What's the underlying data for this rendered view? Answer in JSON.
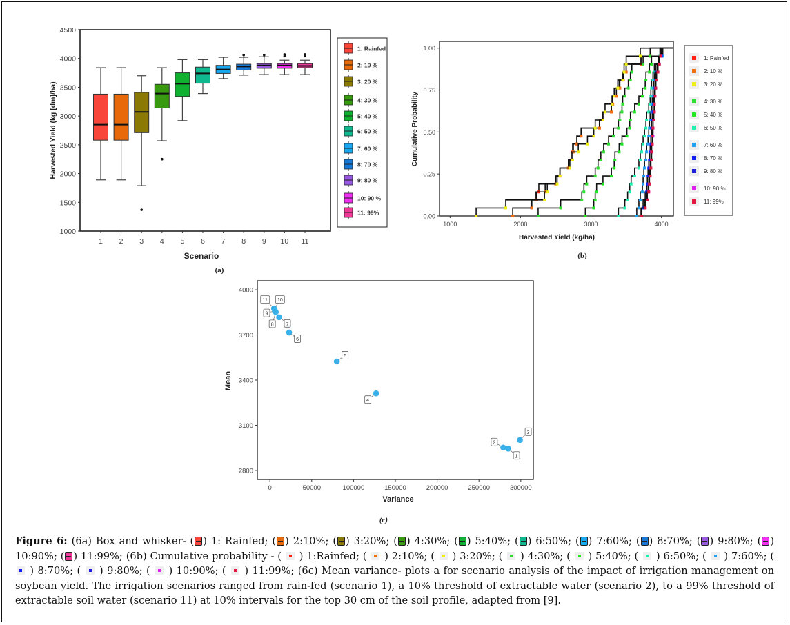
{
  "figure": {
    "caption_label": "Figure 6:",
    "caption_parts": {
      "a_intro": " (6a) Box and whisker- (",
      "b_intro": "; (6b) Cumulative probability - (",
      "c_text": "; (6c) Mean variance- plots a for scenario analysis of the impact of irrigation management on soybean yield. The irrigation scenarios ranged from rain-fed (scenario 1), a 10% threshold of extractable water (scenario 2), to a 99% threshold of extractable soil water (scenario 11) at 10% intervals for the top 30 cm of the soil profile, adapted from [9]."
    },
    "caption_a_items": [
      "1: Rainfed",
      "2:10%",
      "3:20%",
      "4:30%",
      "5:40%",
      "6:50%",
      "7:60%",
      "8:70%",
      "9:80%",
      "10:90%",
      "11:99%"
    ],
    "caption_b_items": [
      "1:Rainfed",
      "2:10%",
      "3:20%",
      "4:30%",
      "5:40%",
      "6:50%",
      "7:60%",
      "8:70%",
      "9:80%",
      "10:90%",
      "11:99%"
    ],
    "panel_labels": {
      "a": "(a)",
      "b": "(b)",
      "c": "(c)"
    }
  },
  "colors": {
    "scenario_box": [
      "#f8463a",
      "#e8690a",
      "#8a7a05",
      "#389a10",
      "#10b030",
      "#10b890",
      "#18a8f0",
      "#1878d8",
      "#9858e0",
      "#f030f0",
      "#f03898"
    ],
    "scenario_cdf": [
      "#ff2010",
      "#f07010",
      "#f0f010",
      "#30e030",
      "#20e820",
      "#20f0b0",
      "#20a0f0",
      "#1020f0",
      "#2020e0",
      "#e020f0",
      "#e01840"
    ],
    "scatter_point": "#3ab0e8"
  },
  "chart_data": [
    {
      "type": "box",
      "panel": "a",
      "title": "",
      "xlabel": "Scenario",
      "ylabel": "Harvested Yield (kg [dm]/ha)",
      "ylim": [
        1000,
        4500
      ],
      "yticks": [
        "1000",
        "1500",
        "2000",
        "2500",
        "3000",
        "3500",
        "4000",
        "4500"
      ],
      "categories": [
        "1",
        "2",
        "3",
        "4",
        "5",
        "6",
        "7",
        "8",
        "9",
        "10",
        "11"
      ],
      "legend_title": "",
      "legend_placement": "right",
      "legend": [
        "1: Rainfed",
        "2: 10 %",
        "3: 20 %",
        "4: 30 %",
        "5: 40 %",
        "6: 50 %",
        "7: 60 %",
        "8: 70 %",
        "9: 80 %",
        "10: 90 %",
        "11: 99%"
      ],
      "boxes": [
        {
          "min": 1890,
          "q1": 2580,
          "median": 2850,
          "q3": 3380,
          "max": 3840,
          "outliers": []
        },
        {
          "min": 1890,
          "q1": 2580,
          "median": 2850,
          "q3": 3380,
          "max": 3840,
          "outliers": []
        },
        {
          "min": 1790,
          "q1": 2710,
          "median": 3070,
          "q3": 3410,
          "max": 3700,
          "outliers": [
            1370
          ]
        },
        {
          "min": 2570,
          "q1": 3140,
          "median": 3390,
          "q3": 3550,
          "max": 3840,
          "outliers": [
            2250
          ]
        },
        {
          "min": 2920,
          "q1": 3340,
          "median": 3560,
          "q3": 3750,
          "max": 3980,
          "outliers": []
        },
        {
          "min": 3390,
          "q1": 3570,
          "median": 3740,
          "q3": 3850,
          "max": 3980,
          "outliers": []
        },
        {
          "min": 3650,
          "q1": 3740,
          "median": 3810,
          "q3": 3880,
          "max": 4020,
          "outliers": []
        },
        {
          "min": 3710,
          "q1": 3800,
          "median": 3860,
          "q3": 3900,
          "max": 4020,
          "outliers": [
            4060
          ]
        },
        {
          "min": 3720,
          "q1": 3830,
          "median": 3880,
          "q3": 3910,
          "max": 4030,
          "outliers": [
            4060
          ]
        },
        {
          "min": 3720,
          "q1": 3830,
          "median": 3880,
          "q3": 3910,
          "max": 3970,
          "outliers": [
            4040,
            4070
          ]
        },
        {
          "min": 3720,
          "q1": 3840,
          "median": 3870,
          "q3": 3910,
          "max": 3970,
          "outliers": [
            4040,
            4070
          ]
        }
      ]
    },
    {
      "type": "line",
      "panel": "b",
      "title": "",
      "xlabel": "Harvested Yield (kg/ha)",
      "ylabel": "Cumulative Probability",
      "xlim": [
        850,
        4170
      ],
      "ylim": [
        0,
        1.04
      ],
      "xticks": [
        "1000",
        "2000",
        "3000",
        "4000"
      ],
      "yticks": [
        "0.00",
        "0.25",
        "0.50",
        "0.75",
        "1.00"
      ],
      "legend_placement": "right",
      "legend": [
        "1: Rainfed",
        "2: 10 %",
        "3: 20 %",
        "4: 30 %",
        "5: 40 %",
        "6: 50 %",
        "7: 60 %",
        "8: 70 %",
        "9: 80 %",
        "10: 90 %",
        "11: 99%"
      ],
      "series": [
        {
          "name": "1: Rainfed",
          "x": [
            1890,
            2160,
            2220,
            2260,
            2500,
            2560,
            2680,
            2720,
            2740,
            2800,
            2860,
            3120,
            3160,
            3290,
            3300,
            3360,
            3400,
            3460,
            3500,
            3710,
            3840
          ]
        },
        {
          "name": "2: 10 %",
          "x": [
            1890,
            2160,
            2230,
            2350,
            2500,
            2560,
            2680,
            2720,
            2750,
            2800,
            2860,
            3120,
            3170,
            3290,
            3310,
            3360,
            3410,
            3460,
            3500,
            3710,
            3840
          ]
        },
        {
          "name": "3: 20 %",
          "x": [
            1370,
            1790,
            2340,
            2380,
            2520,
            2560,
            2700,
            2740,
            2820,
            2950,
            3040,
            3060,
            3170,
            3200,
            3300,
            3330,
            3380,
            3450,
            3470,
            3500,
            3700
          ]
        },
        {
          "name": "4: 30 %",
          "x": [
            2250,
            2570,
            2870,
            2900,
            2940,
            3060,
            3100,
            3140,
            3180,
            3250,
            3320,
            3390,
            3410,
            3440,
            3450,
            3480,
            3530,
            3560,
            3580,
            3740,
            3840
          ]
        },
        {
          "name": "5: 40 %",
          "x": [
            2920,
            3040,
            3060,
            3080,
            3170,
            3290,
            3330,
            3340,
            3400,
            3440,
            3510,
            3550,
            3560,
            3620,
            3680,
            3730,
            3770,
            3780,
            3830,
            3860,
            3980
          ]
        },
        {
          "name": "6: 50 %",
          "x": [
            3390,
            3480,
            3520,
            3550,
            3570,
            3620,
            3680,
            3700,
            3720,
            3740,
            3760,
            3780,
            3790,
            3820,
            3840,
            3850,
            3860,
            3880,
            3900,
            3960,
            3980
          ]
        },
        {
          "name": "7: 60 %",
          "x": [
            3650,
            3680,
            3700,
            3730,
            3740,
            3750,
            3760,
            3780,
            3790,
            3810,
            3820,
            3830,
            3840,
            3860,
            3870,
            3880,
            3890,
            3900,
            3920,
            3960,
            4020
          ]
        },
        {
          "name": "8: 70 %",
          "x": [
            3710,
            3740,
            3770,
            3790,
            3800,
            3810,
            3820,
            3830,
            3840,
            3850,
            3860,
            3860,
            3870,
            3880,
            3890,
            3900,
            3910,
            3920,
            3940,
            3970,
            4000
          ]
        },
        {
          "name": "9: 80 %",
          "x": [
            3720,
            3760,
            3790,
            3810,
            3820,
            3830,
            3840,
            3850,
            3860,
            3870,
            3880,
            3880,
            3890,
            3900,
            3900,
            3910,
            3920,
            3930,
            3950,
            3970,
            4000
          ]
        },
        {
          "name": "10: 90 %",
          "x": [
            3720,
            3770,
            3800,
            3820,
            3830,
            3840,
            3850,
            3860,
            3860,
            3870,
            3880,
            3880,
            3890,
            3900,
            3900,
            3910,
            3920,
            3930,
            3950,
            3970,
            3990
          ]
        },
        {
          "name": "11: 99%",
          "x": [
            3720,
            3770,
            3800,
            3820,
            3830,
            3840,
            3850,
            3860,
            3860,
            3870,
            3870,
            3880,
            3890,
            3900,
            3900,
            3910,
            3920,
            3930,
            3950,
            3970,
            3990
          ]
        }
      ]
    },
    {
      "type": "scatter",
      "panel": "c",
      "title": "",
      "xlabel": "Variance",
      "ylabel": "Mean",
      "xlim": [
        -15000,
        315000
      ],
      "ylim": [
        2740,
        4060
      ],
      "xticks": [
        "0",
        "50000",
        "100000",
        "150000",
        "200000",
        "250000",
        "300000"
      ],
      "yticks": [
        "2800",
        "3100",
        "3400",
        "3700",
        "4000"
      ],
      "points": [
        {
          "label": "1",
          "variance": 285000,
          "mean": 2945
        },
        {
          "label": "2",
          "variance": 279000,
          "mean": 2952
        },
        {
          "label": "3",
          "variance": 299000,
          "mean": 3002
        },
        {
          "label": "4",
          "variance": 127000,
          "mean": 3312
        },
        {
          "label": "5",
          "variance": 80000,
          "mean": 3524
        },
        {
          "label": "6",
          "variance": 23000,
          "mean": 3716
        },
        {
          "label": "7",
          "variance": 11000,
          "mean": 3818
        },
        {
          "label": "8",
          "variance": 7000,
          "mean": 3852
        },
        {
          "label": "9",
          "variance": 6000,
          "mean": 3860
        },
        {
          "label": "10",
          "variance": 5500,
          "mean": 3872
        },
        {
          "label": "11",
          "variance": 5000,
          "mean": 3876
        }
      ]
    }
  ]
}
